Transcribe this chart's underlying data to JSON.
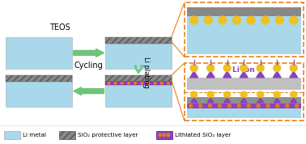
{
  "bg_color": "#ffffff",
  "li_metal_color": "#a8d8ea",
  "sio2_color": "#7a7a7a",
  "lithiated_sio2_color": "#8844bb",
  "arrow_color": "#6dc47a",
  "orange_border": "#e8821a",
  "yellow_ion": "#f0c020",
  "purple_ion": "#8844bb",
  "orange_dot": "#e87820",
  "teos_text": "TEOS",
  "li_plating_text": "Li plating",
  "cycling_text": "Cycling",
  "li_ion_text": "Li ion"
}
